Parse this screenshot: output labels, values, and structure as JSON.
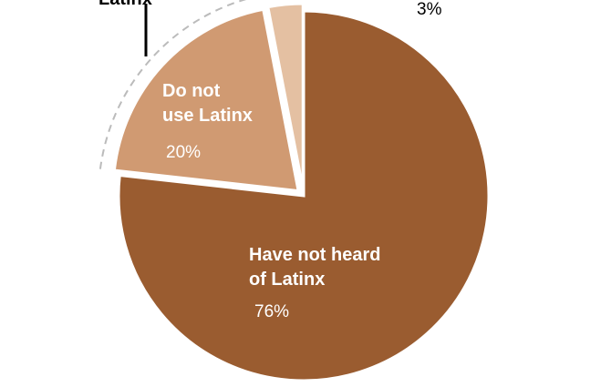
{
  "chart_data": {
    "type": "pie",
    "slices": [
      {
        "label_lines": [
          "Have not heard",
          "of Latinx"
        ],
        "value": 76,
        "value_label": "76%",
        "color": "#9a5c30"
      },
      {
        "label_lines": [
          "Do not",
          "use Latinx"
        ],
        "value": 20,
        "value_label": "20%",
        "color": "#d09a72"
      },
      {
        "label_lines": [],
        "value": 3,
        "value_label": "3%",
        "color": "#e4c0a2"
      }
    ],
    "outside_label": "Latinx",
    "outside_value_label": "3%",
    "colors": {
      "dashed_arc": "#bbbbbb",
      "leader_line": "#000000"
    }
  }
}
